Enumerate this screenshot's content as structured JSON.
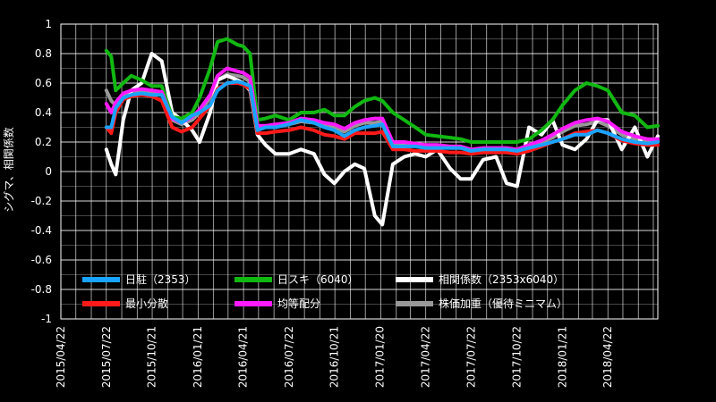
{
  "chart_data": {
    "type": "line",
    "title": "",
    "ylabel": "シグマ、相関係数",
    "xlabel": "",
    "ylim": [
      -1,
      1
    ],
    "yticks": [
      "1",
      "0.8",
      "0.6",
      "0.4",
      "0.2",
      "0",
      "-0.2",
      "-0.4",
      "-0.6",
      "-0.8",
      "-1"
    ],
    "ytick_values": [
      1,
      0.8,
      0.6,
      0.4,
      0.2,
      0,
      -0.2,
      -0.4,
      -0.6,
      -0.8,
      -1
    ],
    "xlim": [
      "2015-04-22",
      "2018-07-31"
    ],
    "xticks": [
      "2015/04/22",
      "2015/07/22",
      "2015/10/21",
      "2016/01/21",
      "2016/04/21",
      "2016/07/22",
      "2016/10/21",
      "2017/01/20",
      "2017/04/22",
      "2017/07/22",
      "2017/10/22",
      "2018/01/21",
      "2018/04/22"
    ],
    "xtick_dates": [
      "2015-04-22",
      "2015-07-22",
      "2015-10-21",
      "2016-01-21",
      "2016-04-21",
      "2016-07-22",
      "2016-10-21",
      "2017-01-20",
      "2017-04-22",
      "2017-07-22",
      "2017-10-22",
      "2018-01-21",
      "2018-04-22"
    ],
    "grid": true,
    "background": "#000000",
    "legend_placement": "bottom-left",
    "series": [
      {
        "name": "日駐（2353）",
        "color": "#1aa3ff",
        "x": [
          "2015-07-22",
          "2015-08-01",
          "2015-08-10",
          "2015-08-25",
          "2015-09-10",
          "2015-10-01",
          "2015-10-21",
          "2015-11-10",
          "2015-12-01",
          "2015-12-20",
          "2016-01-10",
          "2016-01-25",
          "2016-02-15",
          "2016-03-01",
          "2016-03-20",
          "2016-04-10",
          "2016-04-21",
          "2016-05-05",
          "2016-05-20",
          "2016-06-05",
          "2016-06-25",
          "2016-07-22",
          "2016-08-15",
          "2016-09-10",
          "2016-10-01",
          "2016-10-21",
          "2016-11-10",
          "2016-12-01",
          "2016-12-20",
          "2017-01-10",
          "2017-01-25",
          "2017-02-15",
          "2017-03-10",
          "2017-04-01",
          "2017-04-22",
          "2017-05-15",
          "2017-06-10",
          "2017-07-01",
          "2017-07-22",
          "2017-08-15",
          "2017-09-10",
          "2017-10-01",
          "2017-10-22",
          "2017-11-15",
          "2017-12-10",
          "2018-01-01",
          "2018-01-21",
          "2018-02-15",
          "2018-03-10",
          "2018-04-01",
          "2018-04-22",
          "2018-05-20",
          "2018-06-15",
          "2018-07-10",
          "2018-07-31"
        ],
        "values": [
          0.3,
          0.3,
          0.43,
          0.5,
          0.52,
          0.53,
          0.52,
          0.52,
          0.37,
          0.33,
          0.38,
          0.4,
          0.45,
          0.55,
          0.6,
          0.61,
          0.6,
          0.58,
          0.28,
          0.3,
          0.3,
          0.32,
          0.35,
          0.33,
          0.3,
          0.28,
          0.24,
          0.28,
          0.3,
          0.31,
          0.32,
          0.17,
          0.17,
          0.17,
          0.16,
          0.16,
          0.16,
          0.16,
          0.14,
          0.15,
          0.15,
          0.15,
          0.14,
          0.16,
          0.18,
          0.2,
          0.22,
          0.25,
          0.25,
          0.28,
          0.26,
          0.22,
          0.2,
          0.19,
          0.2
        ]
      },
      {
        "name": "日スキ（6040）",
        "color": "#12b812",
        "x": [
          "2015-07-22",
          "2015-08-01",
          "2015-08-10",
          "2015-08-25",
          "2015-09-10",
          "2015-10-01",
          "2015-10-21",
          "2015-11-10",
          "2015-12-01",
          "2015-12-20",
          "2016-01-10",
          "2016-01-25",
          "2016-02-15",
          "2016-03-01",
          "2016-03-20",
          "2016-04-10",
          "2016-04-21",
          "2016-05-05",
          "2016-05-20",
          "2016-06-05",
          "2016-06-25",
          "2016-07-22",
          "2016-08-15",
          "2016-09-10",
          "2016-10-01",
          "2016-10-21",
          "2016-11-10",
          "2016-12-01",
          "2016-12-20",
          "2017-01-10",
          "2017-01-25",
          "2017-02-15",
          "2017-03-10",
          "2017-04-01",
          "2017-04-22",
          "2017-05-15",
          "2017-06-10",
          "2017-07-01",
          "2017-07-22",
          "2017-08-15",
          "2017-09-10",
          "2017-10-01",
          "2017-10-22",
          "2017-11-15",
          "2017-12-10",
          "2018-01-01",
          "2018-01-21",
          "2018-02-15",
          "2018-03-10",
          "2018-04-01",
          "2018-04-22",
          "2018-05-20",
          "2018-06-15",
          "2018-07-10",
          "2018-07-31"
        ],
        "values": [
          0.82,
          0.78,
          0.55,
          0.6,
          0.65,
          0.62,
          0.58,
          0.58,
          0.37,
          0.36,
          0.4,
          0.5,
          0.7,
          0.88,
          0.9,
          0.86,
          0.85,
          0.8,
          0.35,
          0.36,
          0.38,
          0.35,
          0.4,
          0.4,
          0.42,
          0.38,
          0.38,
          0.44,
          0.48,
          0.5,
          0.48,
          0.4,
          0.35,
          0.3,
          0.25,
          0.24,
          0.23,
          0.22,
          0.2,
          0.2,
          0.2,
          0.2,
          0.2,
          0.22,
          0.28,
          0.35,
          0.45,
          0.55,
          0.6,
          0.58,
          0.55,
          0.4,
          0.38,
          0.3,
          0.31
        ]
      },
      {
        "name": "相関係数（2353x6040）",
        "color": "#ffffff",
        "x": [
          "2015-07-22",
          "2015-08-01",
          "2015-08-10",
          "2015-08-25",
          "2015-09-10",
          "2015-10-01",
          "2015-10-21",
          "2015-11-10",
          "2015-12-01",
          "2015-12-20",
          "2016-01-10",
          "2016-01-25",
          "2016-02-15",
          "2016-03-01",
          "2016-03-20",
          "2016-04-10",
          "2016-04-21",
          "2016-05-05",
          "2016-05-20",
          "2016-06-05",
          "2016-06-25",
          "2016-07-22",
          "2016-08-15",
          "2016-09-10",
          "2016-10-01",
          "2016-10-21",
          "2016-11-10",
          "2016-12-01",
          "2016-12-20",
          "2017-01-10",
          "2017-01-25",
          "2017-02-15",
          "2017-03-10",
          "2017-04-01",
          "2017-04-22",
          "2017-05-15",
          "2017-06-10",
          "2017-07-01",
          "2017-07-22",
          "2017-08-15",
          "2017-09-10",
          "2017-10-01",
          "2017-10-22",
          "2017-11-15",
          "2017-12-10",
          "2018-01-01",
          "2018-01-21",
          "2018-02-15",
          "2018-03-10",
          "2018-04-01",
          "2018-04-22",
          "2018-05-20",
          "2018-06-15",
          "2018-07-10",
          "2018-07-31"
        ],
        "values": [
          0.15,
          0.05,
          -0.02,
          0.35,
          0.55,
          0.6,
          0.8,
          0.75,
          0.4,
          0.35,
          0.28,
          0.2,
          0.4,
          0.62,
          0.65,
          0.62,
          0.6,
          0.55,
          0.25,
          0.18,
          0.12,
          0.12,
          0.15,
          0.12,
          -0.02,
          -0.08,
          0.0,
          0.05,
          0.02,
          -0.3,
          -0.36,
          0.05,
          0.1,
          0.12,
          0.1,
          0.15,
          0.02,
          -0.05,
          -0.05,
          0.08,
          0.1,
          -0.08,
          -0.1,
          0.3,
          0.25,
          0.35,
          0.18,
          0.15,
          0.22,
          0.35,
          0.35,
          0.15,
          0.3,
          0.1,
          0.24
        ]
      },
      {
        "name": "最小分散",
        "color": "#ff1a1a",
        "x": [
          "2015-07-22",
          "2015-08-01",
          "2015-08-10",
          "2015-08-25",
          "2015-09-10",
          "2015-10-01",
          "2015-10-21",
          "2015-11-10",
          "2015-12-01",
          "2015-12-20",
          "2016-01-10",
          "2016-01-25",
          "2016-02-15",
          "2016-03-01",
          "2016-03-20",
          "2016-04-10",
          "2016-04-21",
          "2016-05-05",
          "2016-05-20",
          "2016-06-05",
          "2016-06-25",
          "2016-07-22",
          "2016-08-15",
          "2016-09-10",
          "2016-10-01",
          "2016-10-21",
          "2016-11-10",
          "2016-12-01",
          "2016-12-20",
          "2017-01-10",
          "2017-01-25",
          "2017-02-15",
          "2017-03-10",
          "2017-04-01",
          "2017-04-22",
          "2017-05-15",
          "2017-06-10",
          "2017-07-01",
          "2017-07-22",
          "2017-08-15",
          "2017-09-10",
          "2017-10-01",
          "2017-10-22",
          "2017-11-15",
          "2017-12-10",
          "2018-01-01",
          "2018-01-21",
          "2018-02-15",
          "2018-03-10",
          "2018-04-01",
          "2018-04-22",
          "2018-05-20",
          "2018-06-15",
          "2018-07-10",
          "2018-07-31"
        ],
        "values": [
          0.3,
          0.26,
          0.4,
          0.49,
          0.51,
          0.52,
          0.51,
          0.48,
          0.3,
          0.27,
          0.3,
          0.36,
          0.45,
          0.56,
          0.6,
          0.6,
          0.59,
          0.56,
          0.26,
          0.26,
          0.27,
          0.28,
          0.3,
          0.28,
          0.25,
          0.24,
          0.22,
          0.26,
          0.26,
          0.26,
          0.27,
          0.15,
          0.15,
          0.14,
          0.14,
          0.14,
          0.13,
          0.13,
          0.12,
          0.13,
          0.13,
          0.13,
          0.12,
          0.14,
          0.17,
          0.2,
          0.22,
          0.26,
          0.27,
          0.28,
          0.26,
          0.21,
          0.19,
          0.18,
          0.18
        ]
      },
      {
        "name": "均等配分",
        "color": "#ff1aff",
        "x": [
          "2015-07-22",
          "2015-08-01",
          "2015-08-10",
          "2015-08-25",
          "2015-09-10",
          "2015-10-01",
          "2015-10-21",
          "2015-11-10",
          "2015-12-01",
          "2015-12-20",
          "2016-01-10",
          "2016-01-25",
          "2016-02-15",
          "2016-03-01",
          "2016-03-20",
          "2016-04-10",
          "2016-04-21",
          "2016-05-05",
          "2016-05-20",
          "2016-06-05",
          "2016-06-25",
          "2016-07-22",
          "2016-08-15",
          "2016-09-10",
          "2016-10-01",
          "2016-10-21",
          "2016-11-10",
          "2016-12-01",
          "2016-12-20",
          "2017-01-10",
          "2017-01-25",
          "2017-02-15",
          "2017-03-10",
          "2017-04-01",
          "2017-04-22",
          "2017-05-15",
          "2017-06-10",
          "2017-07-01",
          "2017-07-22",
          "2017-08-15",
          "2017-09-10",
          "2017-10-01",
          "2017-10-22",
          "2017-11-15",
          "2017-12-10",
          "2018-01-01",
          "2018-01-21",
          "2018-02-15",
          "2018-03-10",
          "2018-04-01",
          "2018-04-22",
          "2018-05-20",
          "2018-06-15",
          "2018-07-10",
          "2018-07-31"
        ],
        "values": [
          0.46,
          0.4,
          0.47,
          0.53,
          0.55,
          0.56,
          0.55,
          0.54,
          0.36,
          0.33,
          0.37,
          0.42,
          0.52,
          0.65,
          0.7,
          0.68,
          0.67,
          0.64,
          0.31,
          0.31,
          0.32,
          0.33,
          0.36,
          0.35,
          0.33,
          0.32,
          0.29,
          0.33,
          0.35,
          0.36,
          0.36,
          0.2,
          0.2,
          0.19,
          0.18,
          0.18,
          0.17,
          0.17,
          0.15,
          0.16,
          0.16,
          0.16,
          0.15,
          0.18,
          0.21,
          0.25,
          0.29,
          0.33,
          0.35,
          0.36,
          0.34,
          0.27,
          0.24,
          0.22,
          0.22
        ]
      },
      {
        "name": "株価加重（優待ミニマム）",
        "color": "#999999",
        "x": [
          "2015-07-22",
          "2015-08-01",
          "2015-08-10",
          "2015-08-25",
          "2015-09-10",
          "2015-10-01",
          "2015-10-21",
          "2015-11-10",
          "2015-12-01",
          "2015-12-20",
          "2016-01-10",
          "2016-01-25",
          "2016-02-15",
          "2016-03-01",
          "2016-03-20",
          "2016-04-10",
          "2016-04-21",
          "2016-05-05",
          "2016-05-20",
          "2016-06-05",
          "2016-06-25",
          "2016-07-22",
          "2016-08-15",
          "2016-09-10",
          "2016-10-01",
          "2016-10-21",
          "2016-11-10",
          "2016-12-01",
          "2016-12-20",
          "2017-01-10",
          "2017-01-25",
          "2017-02-15",
          "2017-03-10",
          "2017-04-01",
          "2017-04-22",
          "2017-05-15",
          "2017-06-10",
          "2017-07-01",
          "2017-07-22",
          "2017-08-15",
          "2017-09-10",
          "2017-10-01",
          "2017-10-22",
          "2017-11-15",
          "2017-12-10",
          "2018-01-01",
          "2018-01-21",
          "2018-02-15",
          "2018-03-10",
          "2018-04-01",
          "2018-04-22",
          "2018-05-20",
          "2018-06-15",
          "2018-07-10",
          "2018-07-31"
        ],
        "values": [
          0.55,
          0.48,
          0.45,
          0.52,
          0.54,
          0.55,
          0.54,
          0.53,
          0.35,
          0.32,
          0.35,
          0.4,
          0.5,
          0.62,
          0.66,
          0.65,
          0.64,
          0.61,
          0.3,
          0.3,
          0.31,
          0.32,
          0.34,
          0.33,
          0.31,
          0.3,
          0.27,
          0.31,
          0.33,
          0.33,
          0.34,
          0.19,
          0.19,
          0.18,
          0.17,
          0.17,
          0.16,
          0.16,
          0.14,
          0.15,
          0.15,
          0.15,
          0.14,
          0.17,
          0.2,
          0.23,
          0.27,
          0.31,
          0.32,
          0.34,
          0.31,
          0.25,
          0.22,
          0.21,
          0.21
        ]
      }
    ],
    "draw_order": [
      5,
      2,
      1,
      3,
      4,
      0
    ]
  }
}
